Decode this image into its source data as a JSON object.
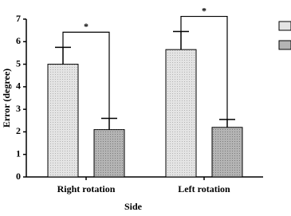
{
  "chart_data": {
    "type": "bar",
    "categories": [
      "Right rotation",
      "Left rotation"
    ],
    "series": [
      {
        "color": "#e4e4e4",
        "values": [
          5.0,
          5.65
        ],
        "errors": [
          0.75,
          0.8
        ]
      },
      {
        "color": "#b4b4b4",
        "values": [
          2.1,
          2.2
        ],
        "errors": [
          0.5,
          0.35
        ]
      }
    ],
    "x_label": "Side",
    "y_label": "Error (degree)",
    "annotations": [
      "*",
      "*"
    ],
    "ylim": [
      0,
      7
    ],
    "yticks": [
      0,
      1,
      2,
      3,
      4,
      5,
      6,
      7
    ]
  }
}
